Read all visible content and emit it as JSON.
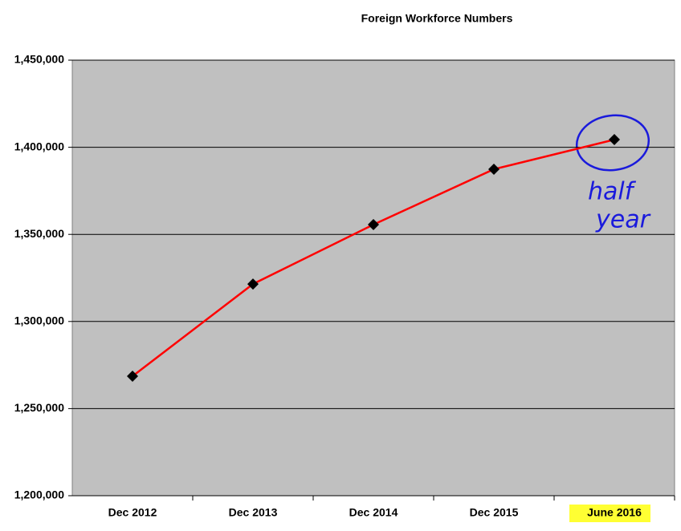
{
  "chart_data": {
    "type": "line",
    "title": "Foreign Workforce Numbers",
    "categories": [
      "Dec 2012",
      "Dec 2013",
      "Dec 2014",
      "Dec 2015",
      "June 2016"
    ],
    "series": [
      {
        "name": "Foreign Workforce",
        "color": "#ff0000",
        "values": [
          1268600,
          1321500,
          1355600,
          1387400,
          1404400
        ]
      }
    ],
    "ylim": [
      1200000,
      1450000
    ],
    "yticks": [
      {
        "value": 1200000,
        "label": "1,200,000"
      },
      {
        "value": 1250000,
        "label": "1,250,000"
      },
      {
        "value": 1300000,
        "label": "1,300,000"
      },
      {
        "value": 1350000,
        "label": "1,350,000"
      },
      {
        "value": 1400000,
        "label": "1,400,000"
      },
      {
        "value": 1450000,
        "label": "1,450,000"
      }
    ],
    "grid": true,
    "annotations": [
      "half",
      "year"
    ]
  }
}
